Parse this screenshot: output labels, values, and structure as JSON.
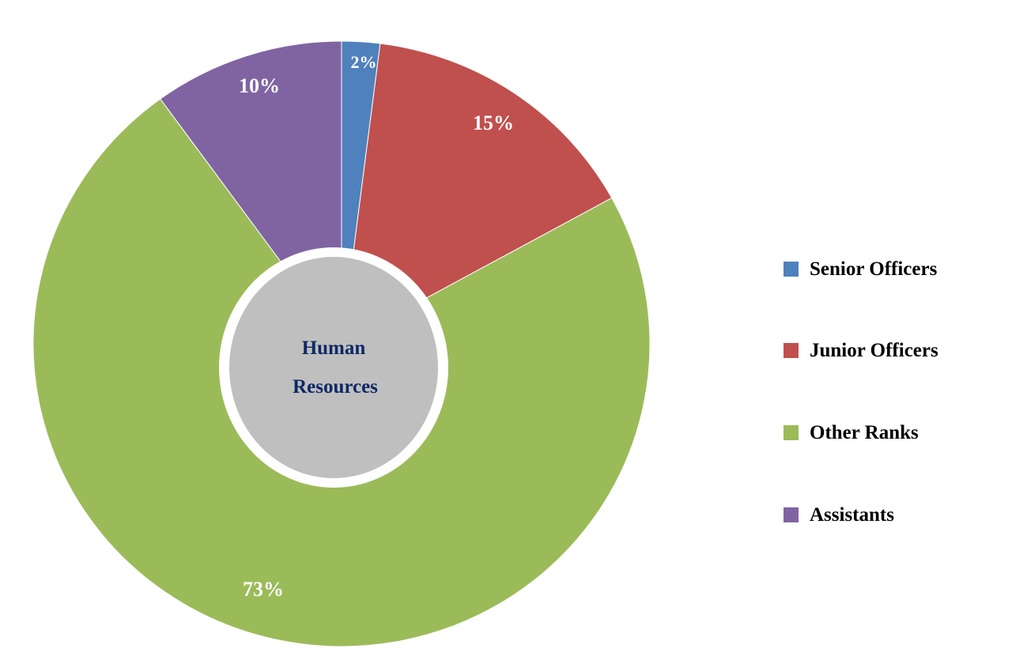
{
  "chart_data": {
    "type": "pie",
    "donut": true,
    "center_label": [
      "Human",
      "Resources"
    ],
    "categories": [
      "Senior Officers",
      "Junior Officers",
      "Other Ranks",
      "Assistants"
    ],
    "values": [
      2,
      15,
      73,
      10
    ],
    "data_labels": [
      "2%",
      "15%",
      "73%",
      "10%"
    ],
    "colors": [
      "#4F81BD",
      "#C0504D",
      "#9BBB59",
      "#8064A2"
    ],
    "center_color": "#BFBFBF",
    "legend_position": "right",
    "start_angle": "12 o'clock, clockwise"
  }
}
